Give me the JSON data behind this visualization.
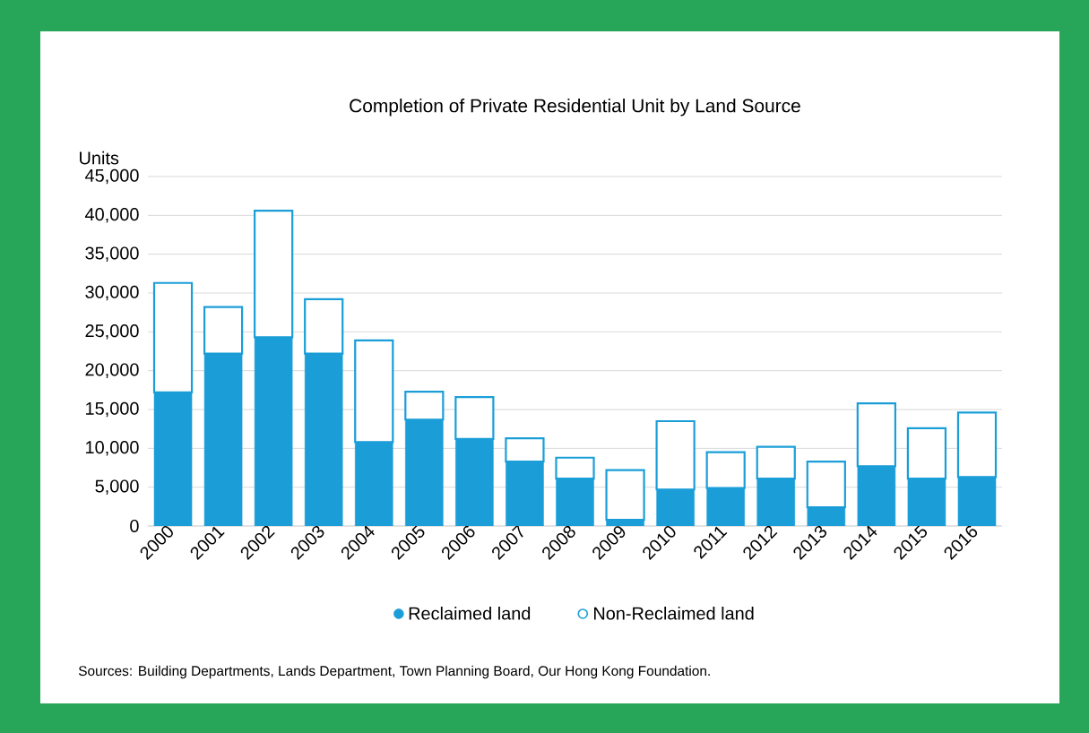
{
  "chart_data": {
    "type": "bar",
    "stacked": true,
    "title": "Completion of Private Residential Unit by Land Source",
    "ylabel": "Units",
    "categories": [
      "2000",
      "2001",
      "2002",
      "2003",
      "2004",
      "2005",
      "2006",
      "2007",
      "2008",
      "2009",
      "2010",
      "2011",
      "2012",
      "2013",
      "2014",
      "2015",
      "2016"
    ],
    "series": [
      {
        "name": "Reclaimed land",
        "color": "#1b9ed8",
        "values": [
          17200,
          22200,
          24300,
          22200,
          10800,
          13700,
          11200,
          8300,
          6100,
          800,
          4700,
          4900,
          6100,
          2400,
          7700,
          6100,
          6300
        ]
      },
      {
        "name": "Non-Reclaimed land",
        "color": "#1b9ed8",
        "values": [
          14100,
          6000,
          16300,
          7000,
          13100,
          3600,
          5400,
          3000,
          2700,
          6400,
          8800,
          4600,
          4100,
          5900,
          8100,
          6500,
          8300
        ]
      }
    ],
    "ylim": [
      0,
      45000
    ],
    "yticks": [
      0,
      {
        "value": 5000,
        "label": "5,000"
      },
      {
        "value": 10000,
        "label": "10,000"
      },
      {
        "value": 15000,
        "label": "15,000"
      },
      {
        "value": 20000,
        "label": "20,000"
      },
      {
        "value": 25000,
        "label": "25,000"
      },
      {
        "value": 30000,
        "label": "30,000"
      },
      {
        "value": 35000,
        "label": "35,000"
      },
      {
        "value": 40000,
        "label": "40,000"
      },
      {
        "value": 45000,
        "label": "45,000"
      }
    ],
    "grid": "y",
    "legend": "bottom",
    "annotations": [
      "Sources: Building Departments, Lands Department, Town Planning Board, Our Hong Kong Foundation."
    ]
  }
}
